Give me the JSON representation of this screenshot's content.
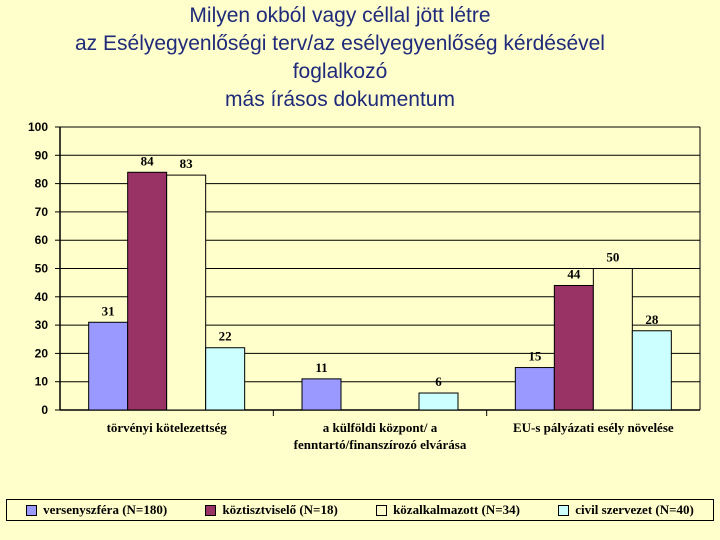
{
  "title_lines": [
    "Milyen okból vagy céllal jött létre",
    "az Esélyegyenlőségi terv/az esélyegyenlőség kérdésével",
    "foglalkozó",
    "más írásos dokumentum"
  ],
  "chart_data": {
    "type": "bar",
    "title": "Milyen okból vagy céllal jött létre az Esélyegyenlőségi terv/az esélyegyenlőség kérdésével foglalkozó más írásos dokumentum",
    "categories": [
      [
        "törvényi kötelezettség"
      ],
      [
        "a külföldi központ/ a",
        "fenntartó/finanszírozó elvárása"
      ],
      [
        "EU-s pályázati esély növelése"
      ]
    ],
    "ylim": [
      0,
      100
    ],
    "yticks": [
      0,
      10,
      20,
      30,
      40,
      50,
      60,
      70,
      80,
      90,
      100
    ],
    "grid": true,
    "legend_position": "bottom",
    "series": [
      {
        "name": "versenyszféra (N=180)",
        "color": "#9999ff",
        "values": [
          31,
          11,
          15
        ]
      },
      {
        "name": "köztisztviselő (N=18)",
        "color": "#993366",
        "values": [
          84,
          null,
          44
        ]
      },
      {
        "name": "közalkalmazott (N=34)",
        "color": "#ffffcc",
        "values": [
          83,
          null,
          50
        ]
      },
      {
        "name": "civil szervezet (N=40)",
        "color": "#ccffff",
        "values": [
          22,
          6,
          28
        ]
      }
    ]
  }
}
